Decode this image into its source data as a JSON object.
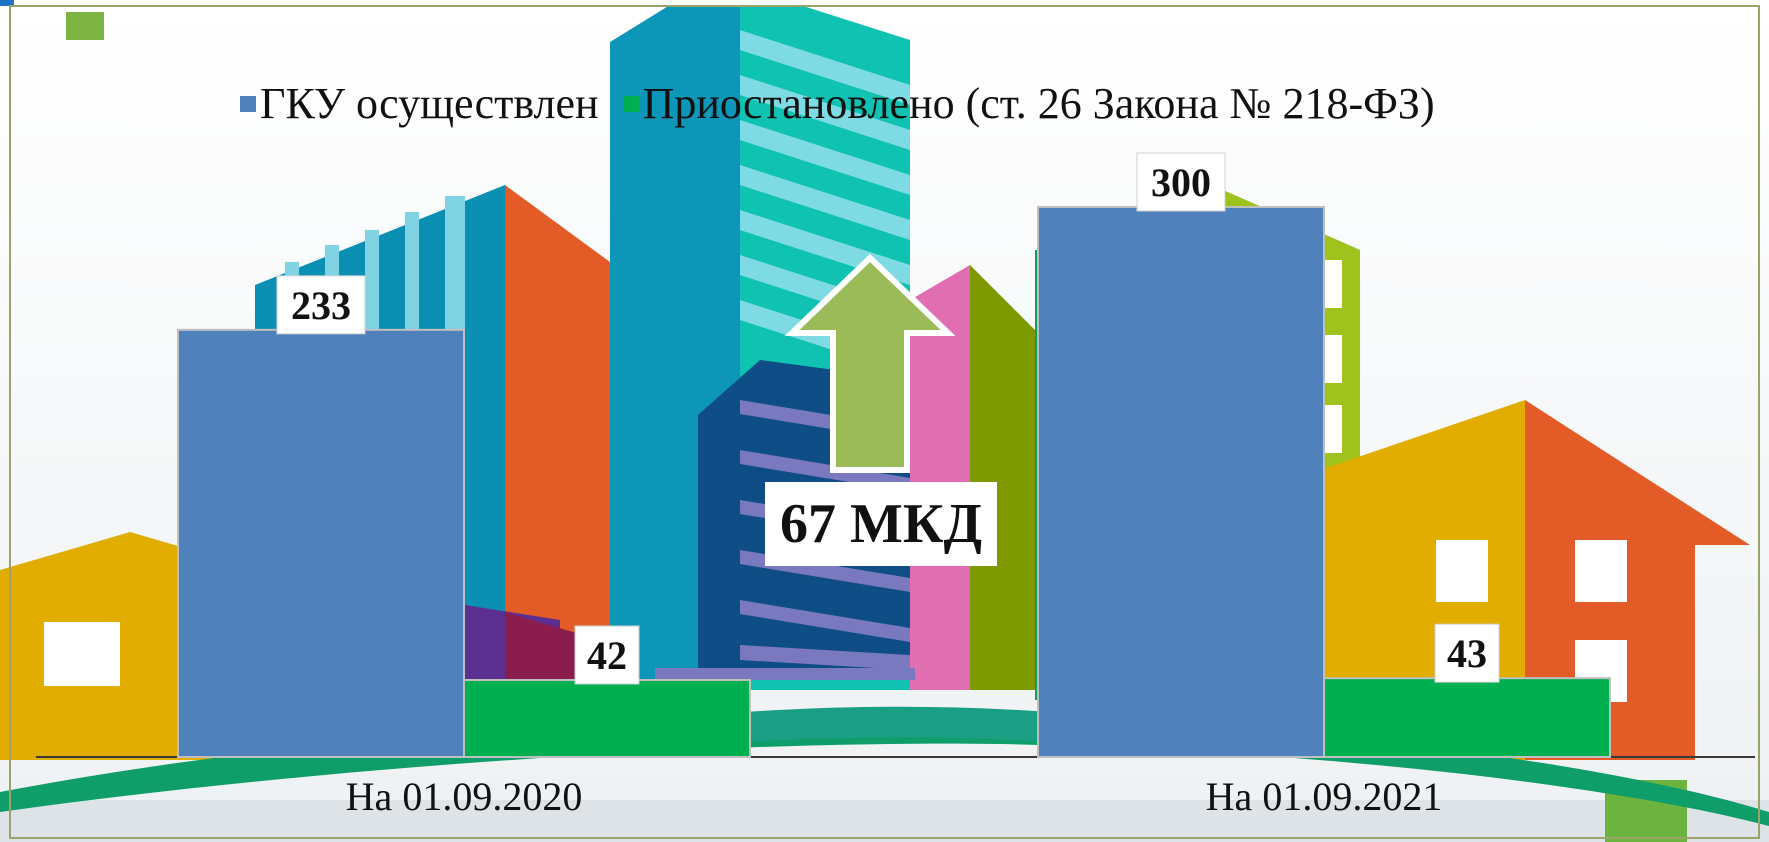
{
  "chart_data": {
    "type": "bar",
    "categories": [
      "На 01.09.2020",
      "На 01.09.2021"
    ],
    "series": [
      {
        "name": "ГКУ осуществлен",
        "color": "#4f81bd",
        "values": [
          233,
          300
        ]
      },
      {
        "name": "Приостановлено (ст. 26 Закона № 218-ФЗ)",
        "color": "#00b050",
        "values": [
          42,
          43
        ]
      }
    ],
    "ylim": [
      0,
      330
    ],
    "grid": false,
    "legend": "top",
    "annotation": {
      "text": "67 МКД",
      "color": "#9bbb59"
    }
  }
}
